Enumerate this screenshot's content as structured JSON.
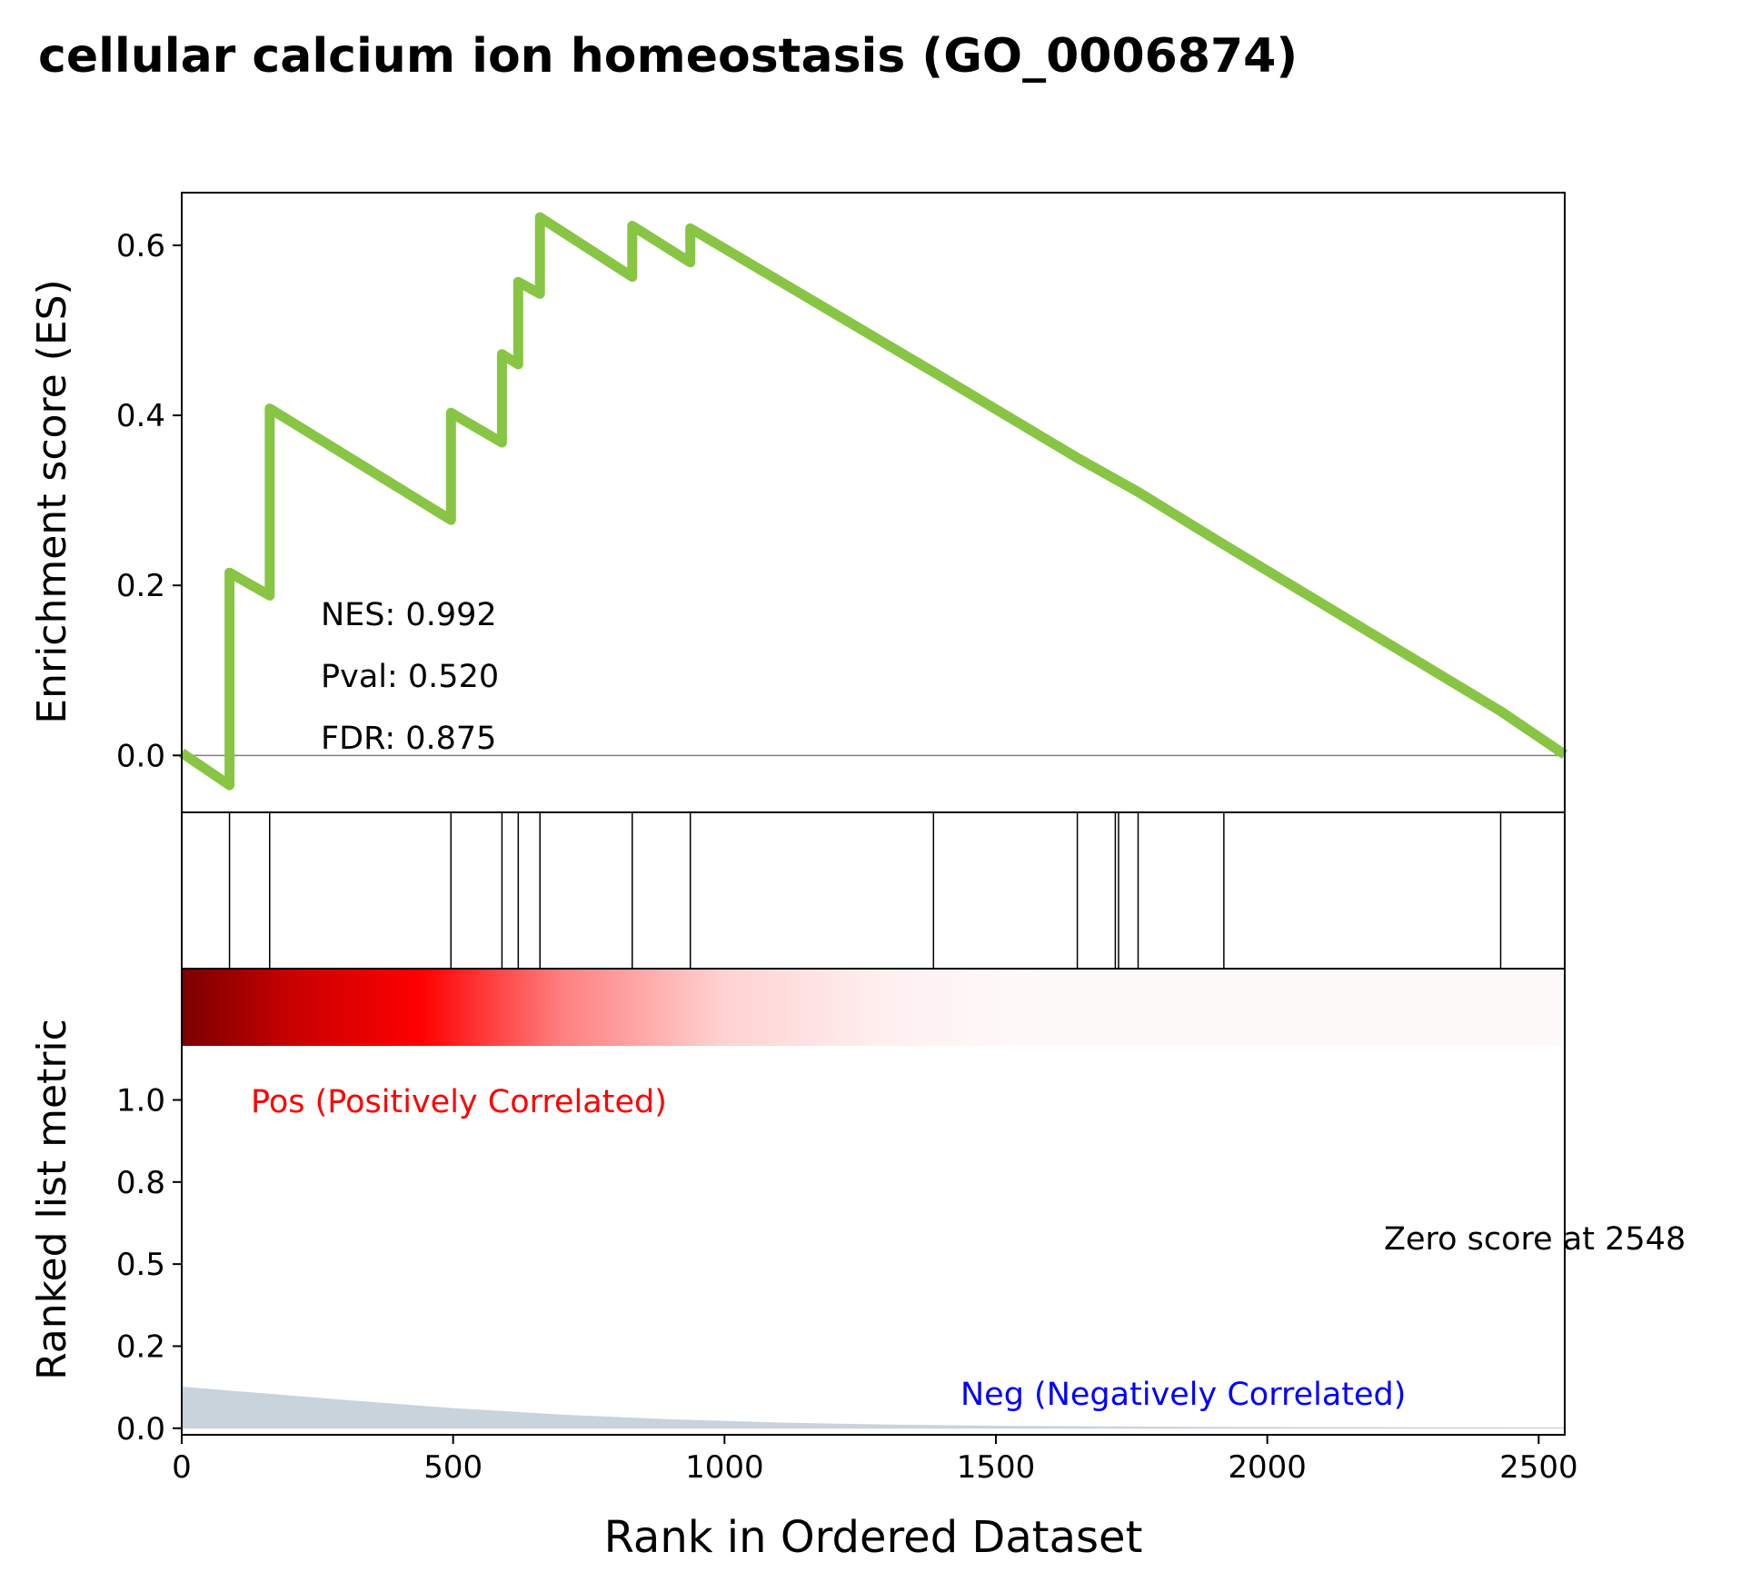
{
  "chart_data": {
    "type": "line",
    "title": "cellular calcium ion homeostasis (GO_0006874)",
    "colors": {
      "es_line": "#88c544",
      "metric_fill": "#c9d3dc",
      "pos_label": "#ff0000",
      "neg_label": "#0000ff",
      "zero_line": "#808080"
    },
    "es_panel": {
      "ylabel": "Enrichment score (ES)",
      "ylim": [
        -0.067,
        0.662
      ],
      "yticks": [
        "0.0",
        "0.2",
        "0.4",
        "0.6"
      ],
      "ytick_values": [
        0.0,
        0.2,
        0.4,
        0.6
      ],
      "annotations": [
        "NES: 0.992",
        "Pval: 0.520",
        "FDR: 0.875"
      ],
      "series": [
        {
          "x": [
            0,
            88,
            88,
            162,
            162,
            496,
            496,
            590,
            590,
            620,
            620,
            660,
            660,
            830,
            830,
            937,
            937,
            1385,
            1650,
            1720,
            1762,
            1920,
            2430,
            2548
          ],
          "values": [
            0.003,
            -0.035,
            0.215,
            0.188,
            0.408,
            0.277,
            0.403,
            0.368,
            0.472,
            0.46,
            0.557,
            0.543,
            0.633,
            0.563,
            0.623,
            0.58,
            0.62,
            0.451,
            0.35,
            0.325,
            0.31,
            0.248,
            0.052,
            0.001
          ]
        }
      ]
    },
    "hits_panel": {
      "hits": [
        88,
        162,
        496,
        590,
        620,
        660,
        830,
        937,
        1385,
        1650,
        1720,
        1726,
        1762,
        1920,
        2430
      ]
    },
    "metric_panel": {
      "ylabel": "Ranked list metric",
      "xlabel": "Rank in Ordered Dataset",
      "xlim": [
        0,
        2548
      ],
      "ylim": [
        -0.02,
        1.4
      ],
      "yticks": [
        "0.0",
        "0.2",
        "0.5",
        "0.8",
        "1.0"
      ],
      "ytick_values": [
        0.0,
        0.25,
        0.5,
        0.75,
        1.0
      ],
      "xticks": [
        "0",
        "500",
        "1000",
        "1500",
        "2000",
        "2500"
      ],
      "xtick_values": [
        0,
        500,
        1000,
        1500,
        2000,
        2500
      ],
      "pos_label": "Pos (Positively Correlated)",
      "neg_label": "Neg (Negatively Correlated)",
      "zero_label": "Zero score at 2548",
      "metric": {
        "x": [
          0,
          150,
          300,
          500,
          700,
          900,
          1100,
          1300,
          1500,
          1700,
          1900,
          2100,
          2300,
          2548
        ],
        "values": [
          0.125,
          0.105,
          0.085,
          0.06,
          0.04,
          0.026,
          0.016,
          0.01,
          0.006,
          0.004,
          0.003,
          0.002,
          0.0015,
          0.001
        ]
      },
      "heatmap_stops": [
        {
          "x": 0,
          "color": "#7a0000"
        },
        {
          "x": 200,
          "color": "#c80000"
        },
        {
          "x": 440,
          "color": "#ff0000"
        },
        {
          "x": 700,
          "color": "#ff7f7f"
        },
        {
          "x": 1000,
          "color": "#ffd2d2"
        },
        {
          "x": 1300,
          "color": "#fff0f0"
        },
        {
          "x": 1580,
          "color": "#fffafa"
        },
        {
          "x": 2548,
          "color": "#fffafa"
        }
      ]
    }
  }
}
